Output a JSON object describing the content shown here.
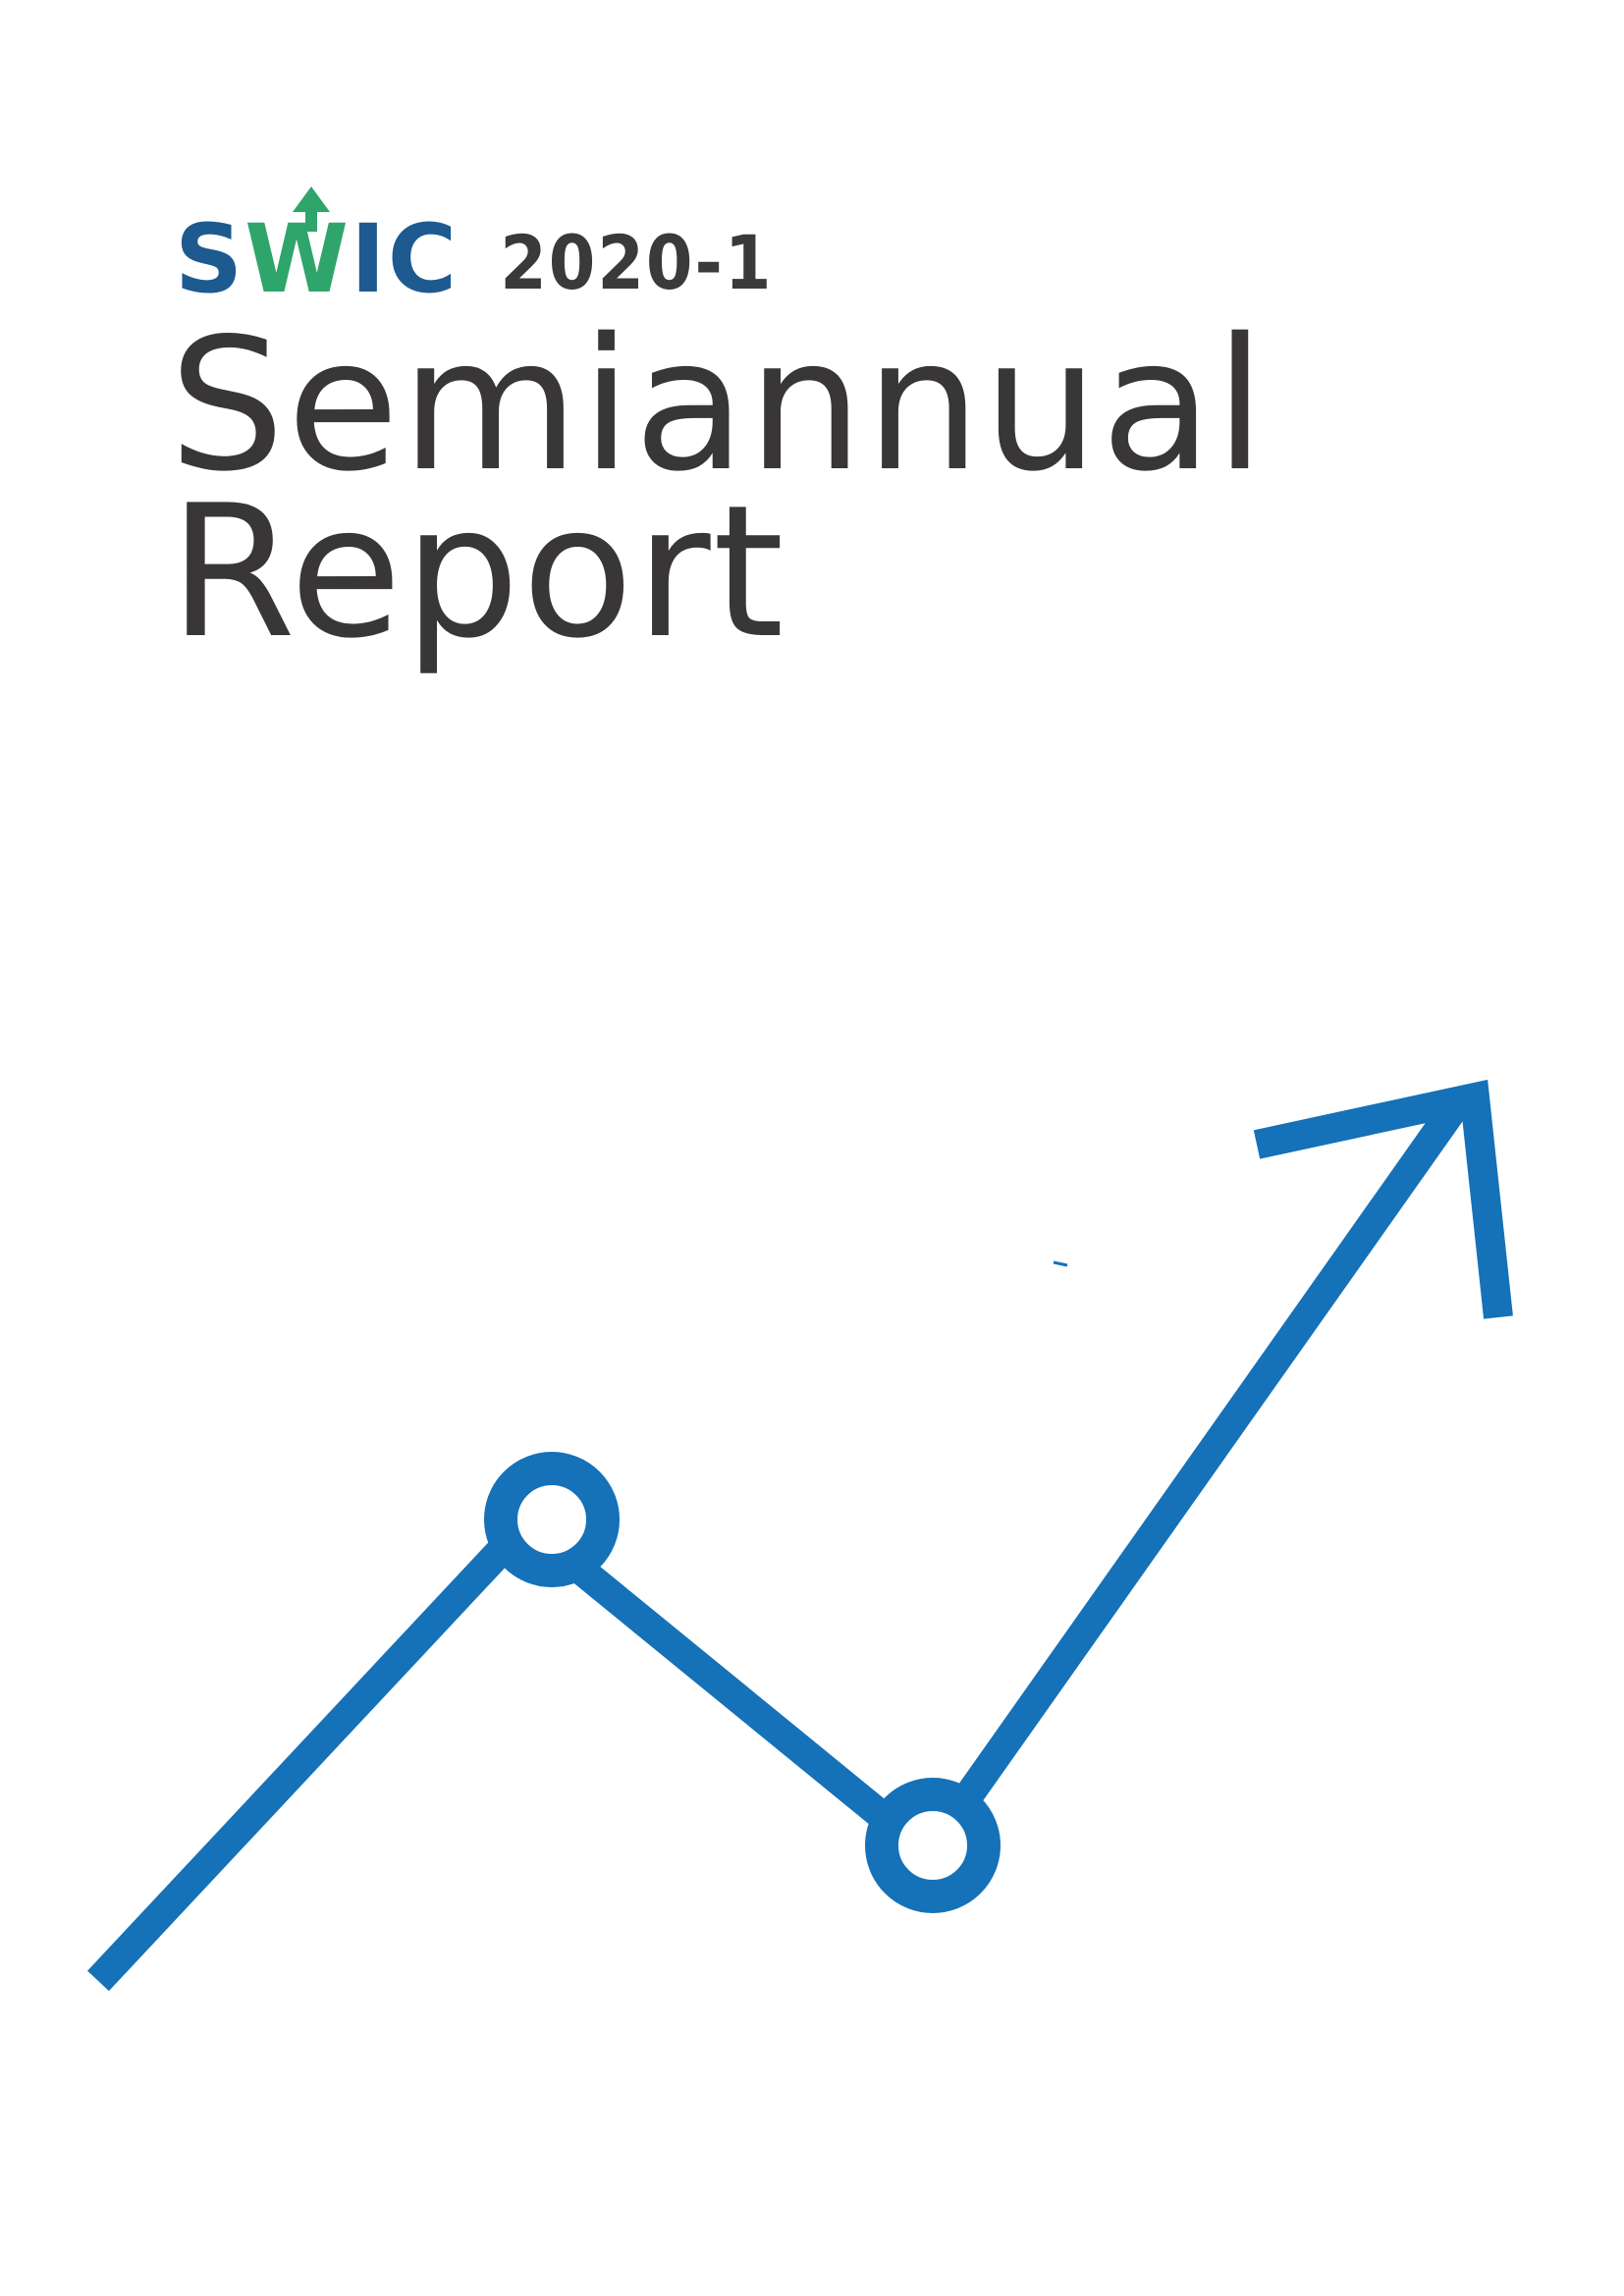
{
  "logo": {
    "letter_s": "S",
    "letter_w": "W",
    "letters_ic": "IC",
    "colors": {
      "navy": "#1d5a8f",
      "green": "#2fa56b"
    }
  },
  "edition": "2020-1",
  "title": {
    "line1": "Semiannual",
    "line2": "Report"
  },
  "graphic": {
    "icon": "trend-arrow-up",
    "color": "#1571b8"
  }
}
